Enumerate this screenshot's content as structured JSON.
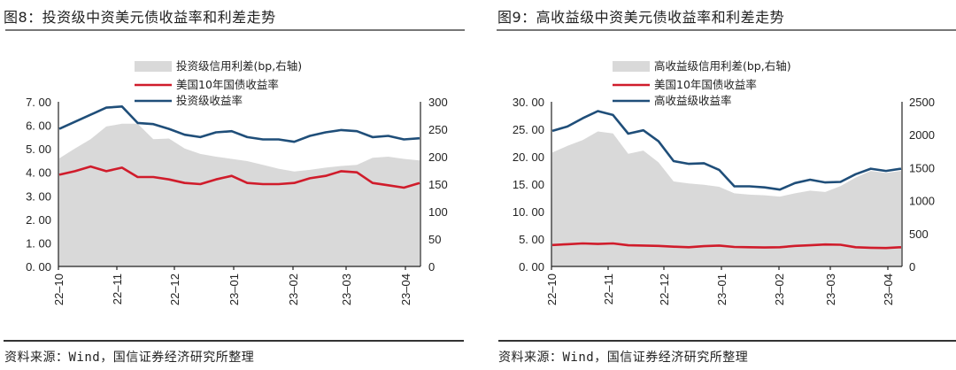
{
  "figures": [
    {
      "title": "图8：投资级中资美元债收益率和利差走势",
      "source": "资料来源：Wind，国信证券经济研究所整理",
      "legend": [
        "投资级信用利差(bp,右轴)",
        "美国10年国债收益率",
        "投资级收益率"
      ]
    },
    {
      "title": "图9：高收益级中资美元债收益率和利差走势",
      "source": "资料来源：Wind，国信证券经济研究所整理",
      "legend": [
        "高收益级信用利差(bp,右轴)",
        "美国10年国债收益率",
        "高收益级收益率"
      ]
    }
  ],
  "colors": {
    "spread": "#d9d9d9",
    "ust10y": "#d01c2b",
    "yield": "#1f4e79",
    "axis": "#222222"
  },
  "chart_data": [
    {
      "type": "line",
      "title": "图8：投资级中资美元债收益率和利差走势",
      "x_ticks": [
        "22-10",
        "22-11",
        "22-12",
        "23-01",
        "23-02",
        "23-03",
        "23-04"
      ],
      "left_axis": {
        "ylim": [
          0,
          7
        ],
        "ticks": [
          "0.00",
          "1.00",
          "2.00",
          "3.00",
          "4.00",
          "5.00",
          "6.00",
          "7.00"
        ],
        "unit": "%"
      },
      "right_axis": {
        "ylim": [
          0,
          300
        ],
        "ticks": [
          "0",
          "50",
          "100",
          "150",
          "200",
          "250",
          "300"
        ],
        "unit": "bp"
      },
      "x": [
        "22-10-01",
        "22-10-10",
        "22-10-20",
        "22-10-28",
        "22-11-01",
        "22-11-08",
        "22-11-15",
        "22-11-22",
        "22-12-01",
        "22-12-10",
        "22-12-20",
        "22-12-28",
        "23-01-05",
        "23-01-15",
        "23-01-25",
        "23-02-01",
        "23-02-10",
        "23-02-20",
        "23-03-01",
        "23-03-08",
        "23-03-15",
        "23-03-25",
        "23-04-01",
        "23-04-08"
      ],
      "series": [
        {
          "name": "投资级信用利差(bp,右轴)",
          "type": "area",
          "axis": "right",
          "values": [
            197,
            215,
            232,
            255,
            260,
            260,
            232,
            233,
            215,
            205,
            200,
            196,
            192,
            185,
            178,
            173,
            176,
            180,
            183,
            185,
            198,
            200,
            196,
            193
          ]
        },
        {
          "name": "美国10年国债收益率",
          "type": "line",
          "axis": "left",
          "values": [
            3.9,
            4.05,
            4.25,
            4.05,
            4.2,
            3.8,
            3.8,
            3.7,
            3.55,
            3.5,
            3.7,
            3.85,
            3.55,
            3.5,
            3.5,
            3.55,
            3.75,
            3.85,
            4.05,
            4.0,
            3.55,
            3.45,
            3.35,
            3.55
          ]
        },
        {
          "name": "投资级收益率",
          "type": "line",
          "axis": "left",
          "values": [
            5.85,
            6.15,
            6.45,
            6.75,
            6.8,
            6.1,
            6.05,
            5.85,
            5.6,
            5.5,
            5.7,
            5.75,
            5.5,
            5.4,
            5.4,
            5.3,
            5.55,
            5.7,
            5.8,
            5.75,
            5.5,
            5.55,
            5.4,
            5.45
          ]
        }
      ]
    },
    {
      "type": "line",
      "title": "图9：高收益级中资美元债收益率和利差走势",
      "x_ticks": [
        "22-10",
        "22-11",
        "22-12",
        "23-01",
        "23-02",
        "23-03",
        "23-04"
      ],
      "left_axis": {
        "ylim": [
          0,
          30
        ],
        "ticks": [
          "0.00",
          "5.00",
          "10.00",
          "15.00",
          "20.00",
          "25.00",
          "30.00"
        ],
        "unit": "%"
      },
      "right_axis": {
        "ylim": [
          0,
          2500
        ],
        "ticks": [
          "0",
          "500",
          "1000",
          "1500",
          "2000",
          "2500"
        ],
        "unit": "bp"
      },
      "x": [
        "22-10-01",
        "22-10-10",
        "22-10-20",
        "22-10-28",
        "22-11-01",
        "22-11-08",
        "22-11-15",
        "22-11-22",
        "22-12-01",
        "22-12-10",
        "22-12-20",
        "22-12-28",
        "23-01-02",
        "23-01-10",
        "23-01-20",
        "23-02-01",
        "23-02-10",
        "23-02-20",
        "23-03-01",
        "23-03-10",
        "23-03-20",
        "23-03-25",
        "23-04-01",
        "23-04-08"
      ],
      "series": [
        {
          "name": "高收益级信用利差(bp,右轴)",
          "type": "area",
          "axis": "right",
          "values": [
            1730,
            1830,
            1920,
            2050,
            2020,
            1710,
            1760,
            1580,
            1290,
            1260,
            1240,
            1210,
            1110,
            1090,
            1080,
            1060,
            1110,
            1150,
            1130,
            1220,
            1350,
            1450,
            1420,
            1450
          ]
        },
        {
          "name": "美国10年国债收益率",
          "type": "line",
          "axis": "left",
          "values": [
            3.9,
            4.05,
            4.2,
            4.1,
            4.2,
            3.85,
            3.8,
            3.75,
            3.6,
            3.5,
            3.7,
            3.8,
            3.55,
            3.5,
            3.45,
            3.5,
            3.75,
            3.85,
            4.0,
            3.95,
            3.5,
            3.4,
            3.35,
            3.5
          ]
        },
        {
          "name": "高收益级收益率",
          "type": "line",
          "axis": "left",
          "values": [
            24.7,
            25.5,
            27.0,
            28.3,
            27.6,
            24.2,
            24.8,
            22.8,
            19.2,
            18.7,
            18.8,
            17.6,
            14.6,
            14.6,
            14.4,
            14.0,
            15.2,
            15.8,
            15.3,
            15.4,
            16.8,
            17.8,
            17.4,
            17.8
          ]
        }
      ]
    }
  ]
}
